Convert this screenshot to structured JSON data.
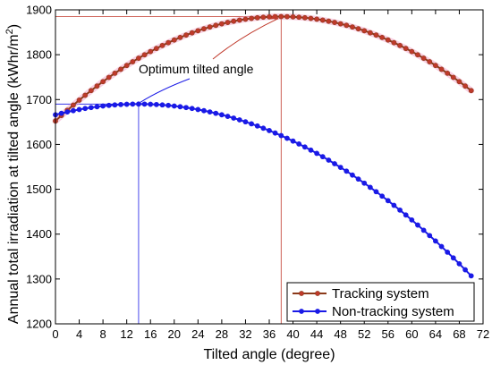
{
  "chart_data": {
    "type": "line",
    "xlabel": "Tilted angle (degree)",
    "ylabel": "Annual total irradiation at tilted angle (kWhr/m",
    "ylabel_sup": "2",
    "ylabel_tail": ")",
    "xlim": [
      0,
      72
    ],
    "ylim": [
      1200,
      1900
    ],
    "x_ticks": [
      0,
      4,
      8,
      12,
      16,
      20,
      24,
      28,
      32,
      36,
      40,
      44,
      48,
      52,
      56,
      60,
      64,
      68,
      72
    ],
    "y_ticks": [
      1200,
      1300,
      1400,
      1500,
      1600,
      1700,
      1800,
      1900
    ],
    "grid": false,
    "legend_position": "bottom-right",
    "series": [
      {
        "name": "Tracking system",
        "color": "#8b3a1a",
        "marker_color": "#c0392b",
        "halo_color": "#f4a6c8",
        "model": {
          "type": "quadratic",
          "peak_x": 38,
          "peak_y": 1885,
          "end_x": 70,
          "end_y": 1720
        },
        "x_start": 0,
        "x_end": 70,
        "x_step": 1
      },
      {
        "name": "Non-tracking system",
        "color": "#1a1ae6",
        "marker_color": "#1a1ae6",
        "halo_color": "",
        "model": {
          "type": "quadratic",
          "peak_x": 14,
          "peak_y": 1690,
          "end_x": 70,
          "end_y": 1307
        },
        "x_start": 0,
        "x_end": 70,
        "x_step": 1
      }
    ],
    "annotations": [
      {
        "text": "Optimum tilted angle"
      }
    ],
    "reference_lines": {
      "tracking_peak": {
        "x": 38,
        "y": 1885,
        "color": "#c0392b"
      },
      "nontracking_peak": {
        "x": 14,
        "y": 1690,
        "color": "#1a1ae6"
      }
    }
  }
}
